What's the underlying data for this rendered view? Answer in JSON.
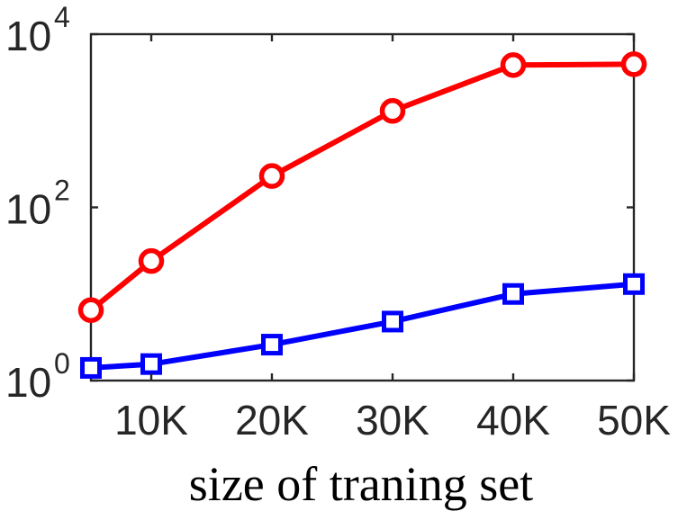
{
  "chart_data": {
    "type": "line",
    "title": "",
    "xlabel": "size of traning set",
    "ylabel": "",
    "yscale": "log",
    "xlim": [
      5,
      50
    ],
    "ylim": [
      1,
      10000
    ],
    "x": [
      5,
      10,
      20,
      30,
      40,
      50
    ],
    "xticks": [
      10,
      20,
      30,
      40,
      50
    ],
    "xtick_labels": [
      "10K",
      "20K",
      "30K",
      "40K",
      "50K"
    ],
    "yticks": [
      {
        "value": 1,
        "base": "10",
        "exp": "0"
      },
      {
        "value": 100,
        "base": "10",
        "exp": "2"
      },
      {
        "value": 10000,
        "base": "10",
        "exp": "4"
      }
    ],
    "grid": false,
    "legend": "none",
    "series": [
      {
        "color": "#ff0000",
        "marker": "circle",
        "values": [
          6.5,
          24,
          230,
          1300,
          4400,
          4500
        ]
      },
      {
        "color": "#0000ff",
        "marker": "square",
        "values": [
          1.4,
          1.55,
          2.6,
          4.8,
          10,
          13
        ]
      }
    ]
  }
}
